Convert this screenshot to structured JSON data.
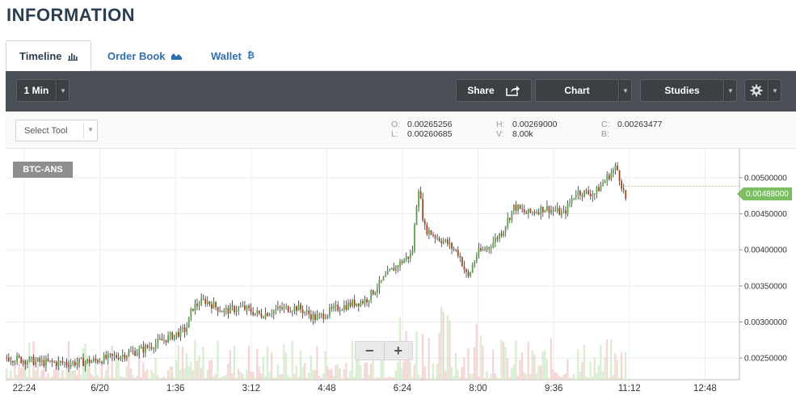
{
  "page": {
    "title": "INFORMATION"
  },
  "tabs": [
    {
      "label": "Timeline",
      "icon": "bar-chart-icon",
      "glyph": "▮▮▮"
    },
    {
      "label": "Order Book",
      "icon": "area-chart-icon",
      "glyph": "◢◣"
    },
    {
      "label": "Wallet",
      "icon": "bitcoin-icon",
      "glyph": "₿"
    }
  ],
  "toolbar": {
    "interval": "1 Min",
    "share": "Share",
    "chart": "Chart",
    "studies": "Studies",
    "settings_icon": "gear-icon",
    "share_icon": "share-icon"
  },
  "subbar": {
    "select_tool": "Select Tool",
    "ohlc": {
      "O": "0.00265256",
      "L": "0.00260685",
      "H": "0.00269000",
      "V": "8.00k",
      "C": "0.00263477",
      "B": ""
    }
  },
  "chart_data": {
    "type": "candlestick",
    "symbol": "BTC-ANS",
    "current_price": "0.00488000",
    "y_ticks": [
      "0.00500000",
      "0.00450000",
      "0.00400000",
      "0.00350000",
      "0.00300000",
      "0.00250000"
    ],
    "y_tick_values": [
      0.005,
      0.0045,
      0.004,
      0.0035,
      0.003,
      0.0025
    ],
    "ylim": [
      0.0022,
      0.0054
    ],
    "x_ticks": [
      "22:24",
      "6/20",
      "1:36",
      "3:12",
      "4:48",
      "6:24",
      "8:00",
      "9:36",
      "11:12",
      "12:48"
    ],
    "price_path": [
      [
        0,
        0.00251
      ],
      [
        0.03,
        0.00247
      ],
      [
        0.06,
        0.00244
      ],
      [
        0.1,
        0.00243
      ],
      [
        0.14,
        0.00246
      ],
      [
        0.18,
        0.00253
      ],
      [
        0.22,
        0.00262
      ],
      [
        0.26,
        0.00278
      ],
      [
        0.29,
        0.0029
      ],
      [
        0.3,
        0.0032
      ],
      [
        0.32,
        0.0033
      ],
      [
        0.35,
        0.00315
      ],
      [
        0.38,
        0.0032
      ],
      [
        0.41,
        0.0031
      ],
      [
        0.44,
        0.00318
      ],
      [
        0.47,
        0.0032
      ],
      [
        0.5,
        0.00305
      ],
      [
        0.53,
        0.00318
      ],
      [
        0.56,
        0.00326
      ],
      [
        0.58,
        0.0033
      ],
      [
        0.6,
        0.0035
      ],
      [
        0.62,
        0.0037
      ],
      [
        0.64,
        0.00385
      ],
      [
        0.655,
        0.00395
      ],
      [
        0.665,
        0.0049
      ],
      [
        0.675,
        0.0043
      ],
      [
        0.69,
        0.0042
      ],
      [
        0.71,
        0.0041
      ],
      [
        0.73,
        0.00395
      ],
      [
        0.745,
        0.0036
      ],
      [
        0.76,
        0.00395
      ],
      [
        0.78,
        0.00405
      ],
      [
        0.8,
        0.00425
      ],
      [
        0.82,
        0.0046
      ],
      [
        0.84,
        0.0045
      ],
      [
        0.87,
        0.00458
      ],
      [
        0.9,
        0.0045
      ],
      [
        0.92,
        0.0048
      ],
      [
        0.95,
        0.00478
      ],
      [
        0.97,
        0.005
      ],
      [
        0.985,
        0.00515
      ],
      [
        1.0,
        0.0047
      ]
    ]
  }
}
